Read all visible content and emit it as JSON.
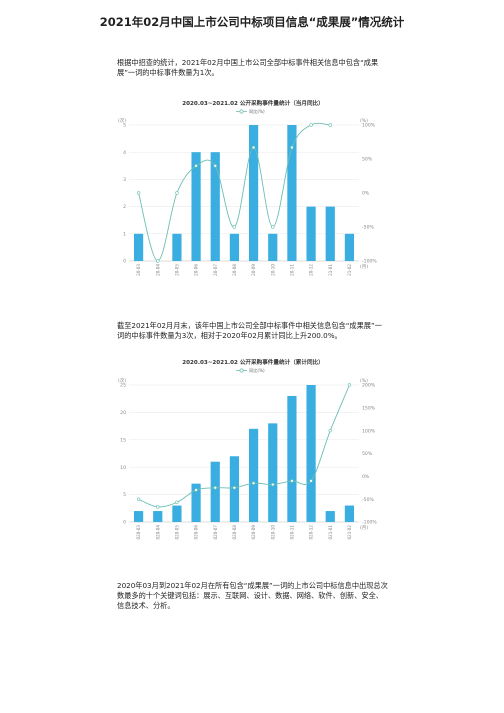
{
  "document": {
    "title": "2021年02月中国上市公司中标项目信息“成果展”情况统计",
    "paragraphs": [
      "根据中招查的统计，2021年02月中国上市公司全部中标事件相关信息中包含“成果展”一词的中标事件数量为1次。",
      "截至2021年02月月末，该年中国上市公司全部中标事件中相关信息包含“成果展”一词的中标事件数量为3次，相对于2020年02月累计同比上升200.0%。",
      "2020年03月到2021年02月在所有包含“成果展”一词的上市公司中标信息中出现总次数最多的十个关键词包括：展示、互联网、设计、数据、网络、软件、创新、安全、信息技术、分析。"
    ]
  },
  "chart_data": [
    {
      "type": "bar",
      "title": "2020.03~2021.02 公开采购事件量统计（当月同比）",
      "legend": "同比(%)",
      "left_unit": "(次)",
      "right_unit": "(%)",
      "x_unit": "(月)",
      "categories": [
        "2020-03",
        "2020-04",
        "2020-05",
        "2020-06",
        "2020-07",
        "2020-08",
        "2020-09",
        "2020-10",
        "2020-11",
        "2020-12",
        "2021-01",
        "2021-02"
      ],
      "series": [
        {
          "kind": "bar",
          "axis": "left",
          "values": [
            1,
            0,
            1,
            4,
            4,
            1,
            5,
            1,
            5,
            2,
            2,
            1
          ]
        },
        {
          "kind": "line",
          "axis": "right",
          "name": "同比(%)",
          "values": [
            0,
            -100,
            0,
            40,
            40,
            -50,
            67,
            -50,
            67,
            100,
            100,
            null
          ]
        }
      ],
      "ylim_left": [
        0,
        5
      ],
      "yticks_left": [
        "0",
        "1",
        "2",
        "3",
        "4",
        "5"
      ],
      "ylim_right": [
        -100,
        100
      ],
      "yticks_right": [
        "-100%",
        "-50%",
        "0%",
        "50%",
        "100%"
      ],
      "colors": {
        "bar": "#3aaee0",
        "line": "#6cbfb3"
      }
    },
    {
      "type": "bar",
      "title": "2020.03~2021.02 公开采购事件量统计（累计同比）",
      "legend": "同比(%)",
      "left_unit": "(次)",
      "right_unit": "(%)",
      "x_unit": "(月)",
      "categories": [
        "2020-03",
        "2020-04",
        "2020-05",
        "2020-06",
        "2020-07",
        "2020-08",
        "2020-09",
        "2020-10",
        "2020-11",
        "2020-12",
        "2021-01",
        "2021-02"
      ],
      "series": [
        {
          "kind": "bar",
          "axis": "left",
          "values": [
            2,
            2,
            3,
            7,
            11,
            12,
            17,
            18,
            23,
            25,
            2,
            3
          ]
        },
        {
          "kind": "line",
          "axis": "right",
          "name": "同比(%)",
          "values": [
            -50,
            -67,
            -57,
            -30,
            -25,
            -25,
            -15,
            -18,
            -10,
            -10,
            100,
            200
          ]
        }
      ],
      "ylim_left": [
        0,
        25
      ],
      "yticks_left": [
        "0",
        "5",
        "10",
        "15",
        "20",
        "25"
      ],
      "ylim_right": [
        -100,
        200
      ],
      "yticks_right": [
        "-100%",
        "-50%",
        "0%",
        "50%",
        "100%",
        "150%",
        "200%"
      ],
      "colors": {
        "bar": "#3aaee0",
        "line": "#6cbfb3"
      }
    }
  ]
}
